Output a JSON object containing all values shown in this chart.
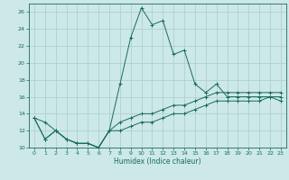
{
  "title": "",
  "xlabel": "Humidex (Indice chaleur)",
  "ylabel": "",
  "x": [
    0,
    1,
    2,
    3,
    4,
    5,
    6,
    7,
    8,
    9,
    10,
    11,
    12,
    13,
    14,
    15,
    16,
    17,
    18,
    19,
    20,
    21,
    22,
    23
  ],
  "line1": [
    13.5,
    13.0,
    12.0,
    11.0,
    10.5,
    10.5,
    10.0,
    12.0,
    17.5,
    23.0,
    26.5,
    24.5,
    25.0,
    21.0,
    21.5,
    17.5,
    16.5,
    17.5,
    16.0,
    16.0,
    16.0,
    16.0,
    16.0,
    15.5
  ],
  "line2": [
    13.5,
    11.0,
    12.0,
    11.0,
    10.5,
    10.5,
    10.0,
    12.0,
    13.0,
    13.5,
    14.0,
    14.0,
    14.5,
    15.0,
    15.0,
    15.5,
    16.0,
    16.5,
    16.5,
    16.5,
    16.5,
    16.5,
    16.5,
    16.5
  ],
  "line3": [
    13.5,
    11.0,
    12.0,
    11.0,
    10.5,
    10.5,
    10.0,
    12.0,
    12.0,
    12.5,
    13.0,
    13.0,
    13.5,
    14.0,
    14.0,
    14.5,
    15.0,
    15.5,
    15.5,
    15.5,
    15.5,
    15.5,
    16.0,
    16.0
  ],
  "line_color": "#1a6b5a",
  "bg_color": "#cce8e8",
  "grid_color": "#aacccc",
  "ylim": [
    10,
    27
  ],
  "yticks": [
    10,
    12,
    14,
    16,
    18,
    20,
    22,
    24,
    26
  ],
  "xlim": [
    -0.5,
    23.5
  ],
  "xticks": [
    0,
    1,
    2,
    3,
    4,
    5,
    6,
    7,
    8,
    9,
    10,
    11,
    12,
    13,
    14,
    15,
    16,
    17,
    18,
    19,
    20,
    21,
    22,
    23
  ],
  "xlabel_fontsize": 5.5,
  "tick_fontsize": 4.5,
  "linewidth": 0.7,
  "markersize": 2.5,
  "markeredgewidth": 0.7
}
